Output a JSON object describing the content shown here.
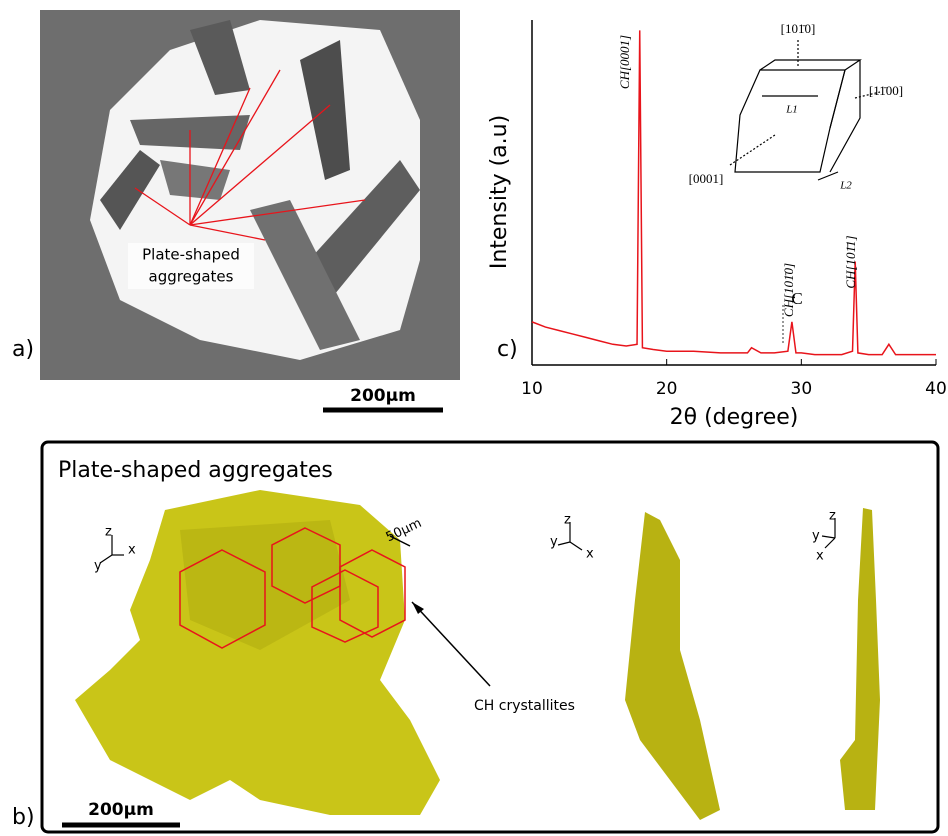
{
  "panel_a": {
    "label": "a)",
    "annotation": [
      "Plate-shaped",
      "aggregates"
    ],
    "scale_bar": "200µm"
  },
  "panel_b": {
    "label": "b)",
    "title": "Plate-shaped aggregates",
    "scale_bar": "200µm",
    "size_label": "50µm",
    "annotation": "CH crystallites",
    "axis_labels": [
      "z",
      "y",
      "x"
    ]
  },
  "chart_data": {
    "type": "line",
    "label": "c)",
    "xlabel": "2θ (degree)",
    "ylabel": "Intensity (a.u)",
    "x": [
      10,
      11,
      12,
      13,
      14,
      15,
      16,
      17,
      17.8,
      18,
      18.2,
      19,
      20,
      22,
      24,
      26,
      26.3,
      27,
      28,
      29,
      29.3,
      29.6,
      30,
      31,
      32,
      33,
      33.8,
      34,
      34.2,
      35,
      36,
      36.5,
      37,
      38,
      39,
      40
    ],
    "values": [
      12.5,
      11,
      10,
      9,
      8,
      7,
      6,
      5.5,
      6,
      97,
      5,
      4.5,
      4,
      4,
      3.5,
      3.5,
      5,
      3.5,
      3.5,
      4,
      12.5,
      3.5,
      3.5,
      3,
      3,
      3,
      4,
      30,
      3.5,
      3,
      3,
      6,
      3,
      3,
      3,
      3
    ],
    "color": "#e8141b",
    "xlim": [
      10,
      40
    ],
    "ylim": [
      0,
      100
    ],
    "xticks": [
      10,
      20,
      30,
      40
    ],
    "annotations": [
      "CH[0001]",
      "CH[101̄0]",
      "C",
      "CH[101̄1]"
    ],
    "inset_labels": [
      "[101̄0]",
      "[11̄00]",
      "[0001]",
      "L1",
      "L2"
    ]
  }
}
